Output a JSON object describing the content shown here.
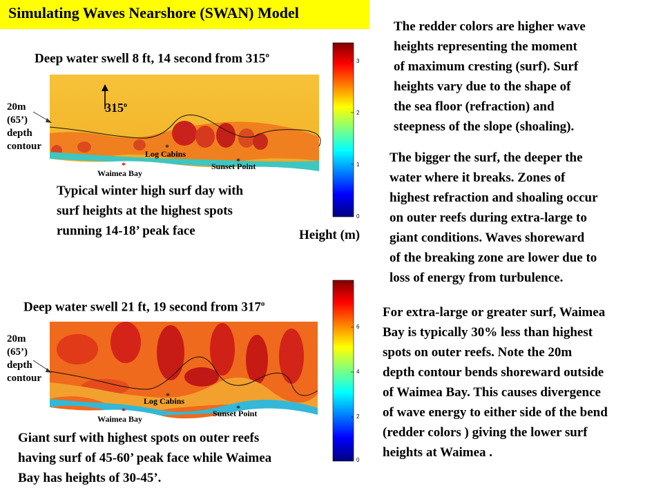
{
  "title": "Simulating Waves Nearshore (SWAN) Model",
  "colors": {
    "title_bg": "#ffff00"
  },
  "panel1": {
    "heading": "Deep water swell 8 ft, 14 second from 315",
    "degree": "o",
    "depth_label": [
      "20m",
      "(65’)",
      "depth",
      "contour"
    ],
    "arrow_label": "315",
    "arrow_deg": "o",
    "places": {
      "log_cabins": "Log Cabins",
      "waimea": "Waimea Bay",
      "sunset": "Sunset Point"
    },
    "caption": [
      "Typical winter high surf day with",
      "surf heights at the highest spots",
      "running 14-18’ peak face"
    ],
    "colorbar_ticks": [
      "3",
      "2",
      "1",
      "0"
    ]
  },
  "height_label": "Height (m)",
  "panel2": {
    "heading": "Deep water swell 21 ft, 19 second from 317",
    "degree": "o",
    "depth_label": [
      "20m",
      "(65’)",
      "depth",
      "contour"
    ],
    "places": {
      "log_cabins": "Log Cabins",
      "waimea": "Waimea Bay",
      "sunset": "Sunset Point"
    },
    "caption": [
      "Giant surf with highest spots on outer reefs",
      "having surf of 45-60’ peak face while Waimea",
      "Bay has heights of 30-45’."
    ],
    "colorbar_ticks": [
      "6",
      "4",
      "2",
      "0"
    ]
  },
  "text_right1": [
    "The redder colors are higher wave",
    "heights representing the moment",
    "of maximum cresting (surf).   Surf",
    "heights vary due to the shape of",
    "the sea floor (refraction) and",
    "steepness of  the slope (shoaling)."
  ],
  "text_right2": [
    "The bigger the surf, the deeper the",
    "water where it breaks.  Zones of",
    "highest refraction and shoaling occur",
    "on outer reefs during extra-large to",
    "giant conditions.  Waves shoreward",
    "of the breaking zone are lower due to",
    "loss of energy from turbulence."
  ],
  "text_right3": [
    "For extra-large or greater surf, Waimea",
    "Bay is typically 30% less than highest",
    "spots on outer reefs.  Note the 20m",
    "depth contour bends shoreward outside",
    "of Waimea Bay. This causes divergence",
    "of wave energy to either side of the bend",
    "(redder colors ) giving the lower  surf",
    "heights at Waimea ."
  ]
}
